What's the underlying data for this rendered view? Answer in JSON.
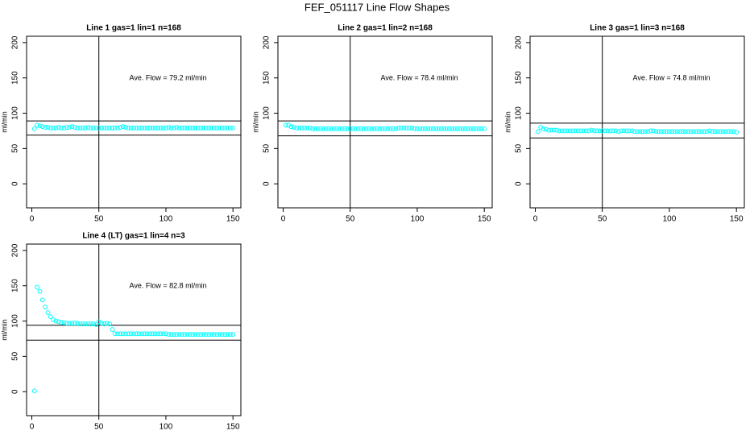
{
  "title": "FEF_051117  Line Flow Shapes",
  "chart_data": [
    {
      "type": "scatter",
      "title": "Line 1 gas=1 lin=1 n=168",
      "y_label": "ml/min",
      "annotation": "Ave. Flow =  79.2  ml/min",
      "xlim": [
        -3.9,
        155.9
      ],
      "ylim": [
        -34,
        209
      ],
      "xticks": [
        0,
        50,
        100,
        150
      ],
      "yticks": [
        0,
        50,
        100,
        150,
        200
      ],
      "hlines": [
        89,
        69
      ],
      "vline": 50,
      "color": "#00ffff",
      "x": [
        2,
        4,
        6,
        8,
        10,
        12,
        14,
        16,
        18,
        20,
        22,
        24,
        26,
        28,
        30,
        32,
        34,
        36,
        38,
        40,
        42,
        44,
        46,
        48,
        50,
        52,
        54,
        56,
        58,
        60,
        62,
        64,
        66,
        68,
        70,
        72,
        74,
        76,
        78,
        80,
        82,
        84,
        86,
        88,
        90,
        92,
        94,
        96,
        98,
        100,
        102,
        104,
        106,
        108,
        110,
        112,
        114,
        116,
        118,
        120,
        122,
        124,
        126,
        128,
        130,
        132,
        134,
        136,
        138,
        140,
        142,
        144,
        146,
        148,
        150
      ],
      "values": [
        78,
        83,
        82,
        81,
        80,
        80,
        79,
        79,
        79,
        80,
        79,
        79,
        80,
        80,
        81,
        80,
        79,
        79,
        79,
        79,
        80,
        79,
        79,
        79,
        79,
        79,
        79,
        79,
        79,
        79,
        79,
        79,
        80,
        81,
        80,
        79,
        79,
        79,
        79,
        79,
        79,
        79,
        79,
        79,
        79,
        79,
        79,
        79,
        79,
        79,
        80,
        79,
        79,
        80,
        79,
        79,
        79,
        79,
        79,
        79,
        79,
        79,
        79,
        79,
        79,
        79,
        79,
        79,
        79,
        79,
        79,
        79,
        79,
        79,
        79
      ]
    },
    {
      "type": "scatter",
      "title": "Line 2 gas=1 lin=2 n=168",
      "y_label": "ml/min",
      "annotation": "Ave. Flow =  78.4  ml/min",
      "xlim": [
        -3.9,
        155.9
      ],
      "ylim": [
        -34,
        209
      ],
      "xticks": [
        0,
        50,
        100,
        150
      ],
      "yticks": [
        0,
        50,
        100,
        150,
        200
      ],
      "hlines": [
        89,
        68
      ],
      "vline": 50,
      "color": "#00ffff",
      "x": [
        2,
        4,
        6,
        8,
        10,
        12,
        14,
        16,
        18,
        20,
        22,
        24,
        26,
        28,
        30,
        32,
        34,
        36,
        38,
        40,
        42,
        44,
        46,
        48,
        50,
        52,
        54,
        56,
        58,
        60,
        62,
        64,
        66,
        68,
        70,
        72,
        74,
        76,
        78,
        80,
        82,
        84,
        86,
        88,
        90,
        92,
        94,
        96,
        98,
        100,
        102,
        104,
        106,
        108,
        110,
        112,
        114,
        116,
        118,
        120,
        122,
        124,
        126,
        128,
        130,
        132,
        134,
        136,
        138,
        140,
        142,
        144,
        146,
        148,
        150
      ],
      "values": [
        83,
        83,
        81,
        80,
        79,
        79,
        79,
        79,
        79,
        79,
        78,
        78,
        78,
        78,
        78,
        78,
        78,
        78,
        78,
        78,
        78,
        78,
        78,
        78,
        78,
        78,
        78,
        78,
        78,
        78,
        78,
        78,
        78,
        78,
        78,
        78,
        78,
        78,
        78,
        78,
        78,
        78,
        79,
        79,
        79,
        79,
        79,
        79,
        78,
        78,
        78,
        78,
        78,
        78,
        78,
        78,
        78,
        78,
        78,
        78,
        78,
        78,
        78,
        78,
        78,
        78,
        78,
        78,
        78,
        78,
        78,
        78,
        78,
        78,
        78
      ]
    },
    {
      "type": "scatter",
      "title": "Line 3 gas=1 lin=3 n=168",
      "y_label": "ml/min",
      "annotation": "Ave. Flow =  74.8  ml/min",
      "xlim": [
        -3.9,
        155.9
      ],
      "ylim": [
        -34,
        209
      ],
      "xticks": [
        0,
        50,
        100,
        150
      ],
      "yticks": [
        0,
        50,
        100,
        150,
        200
      ],
      "hlines": [
        86,
        65
      ],
      "vline": 50,
      "color": "#00ffff",
      "x": [
        2,
        4,
        6,
        8,
        10,
        12,
        14,
        16,
        18,
        20,
        22,
        24,
        26,
        28,
        30,
        32,
        34,
        36,
        38,
        40,
        42,
        44,
        46,
        48,
        50,
        52,
        54,
        56,
        58,
        60,
        62,
        64,
        66,
        68,
        70,
        72,
        74,
        76,
        78,
        80,
        82,
        84,
        86,
        88,
        90,
        92,
        94,
        96,
        98,
        100,
        102,
        104,
        106,
        108,
        110,
        112,
        114,
        116,
        118,
        120,
        122,
        124,
        126,
        128,
        130,
        132,
        134,
        136,
        138,
        140,
        142,
        144,
        146,
        148,
        150
      ],
      "values": [
        74,
        80,
        78,
        77,
        76,
        76,
        76,
        76,
        75,
        75,
        75,
        75,
        75,
        75,
        75,
        75,
        75,
        75,
        75,
        75,
        76,
        75,
        75,
        75,
        75,
        75,
        75,
        75,
        75,
        75,
        74,
        75,
        75,
        75,
        75,
        75,
        74,
        74,
        74,
        74,
        74,
        74,
        75,
        75,
        74,
        74,
        74,
        74,
        74,
        74,
        74,
        74,
        74,
        74,
        74,
        74,
        74,
        74,
        74,
        74,
        74,
        74,
        74,
        74,
        75,
        74,
        74,
        74,
        74,
        74,
        74,
        74,
        74,
        74,
        73
      ]
    },
    {
      "type": "scatter",
      "title": "Line 4 (LT) gas=1 lin=4 n=3",
      "y_label": "ml/min",
      "annotation": "Ave. Flow =  82.8  ml/min",
      "xlim": [
        -3.9,
        155.9
      ],
      "ylim": [
        -34,
        209
      ],
      "xticks": [
        0,
        50,
        100,
        150
      ],
      "yticks": [
        0,
        50,
        100,
        150,
        200
      ],
      "hlines": [
        94,
        73
      ],
      "vline": 50,
      "color": "#00ffff",
      "x": [
        2,
        4,
        6,
        8,
        10,
        12,
        14,
        16,
        18,
        20,
        22,
        24,
        26,
        28,
        30,
        32,
        34,
        36,
        38,
        40,
        42,
        44,
        46,
        48,
        50,
        52,
        54,
        56,
        58,
        60,
        62,
        64,
        66,
        68,
        70,
        72,
        74,
        76,
        78,
        80,
        82,
        84,
        86,
        88,
        90,
        92,
        94,
        96,
        98,
        100,
        102,
        104,
        106,
        108,
        110,
        112,
        114,
        116,
        118,
        120,
        122,
        124,
        126,
        128,
        130,
        132,
        134,
        136,
        138,
        140,
        142,
        144,
        146,
        148,
        150
      ],
      "values": [
        1,
        148,
        142,
        130,
        120,
        112,
        106,
        102,
        100,
        99,
        98,
        98,
        97,
        97,
        97,
        97,
        97,
        96,
        96,
        96,
        96,
        96,
        96,
        95,
        99,
        97,
        96,
        97,
        96,
        88,
        82,
        82,
        82,
        82,
        82,
        82,
        82,
        82,
        82,
        82,
        82,
        82,
        82,
        82,
        82,
        82,
        82,
        82,
        82,
        82,
        81,
        81,
        81,
        81,
        81,
        81,
        81,
        81,
        81,
        81,
        81,
        81,
        81,
        81,
        81,
        81,
        81,
        81,
        81,
        81,
        81,
        81,
        81,
        81,
        81
      ]
    }
  ]
}
